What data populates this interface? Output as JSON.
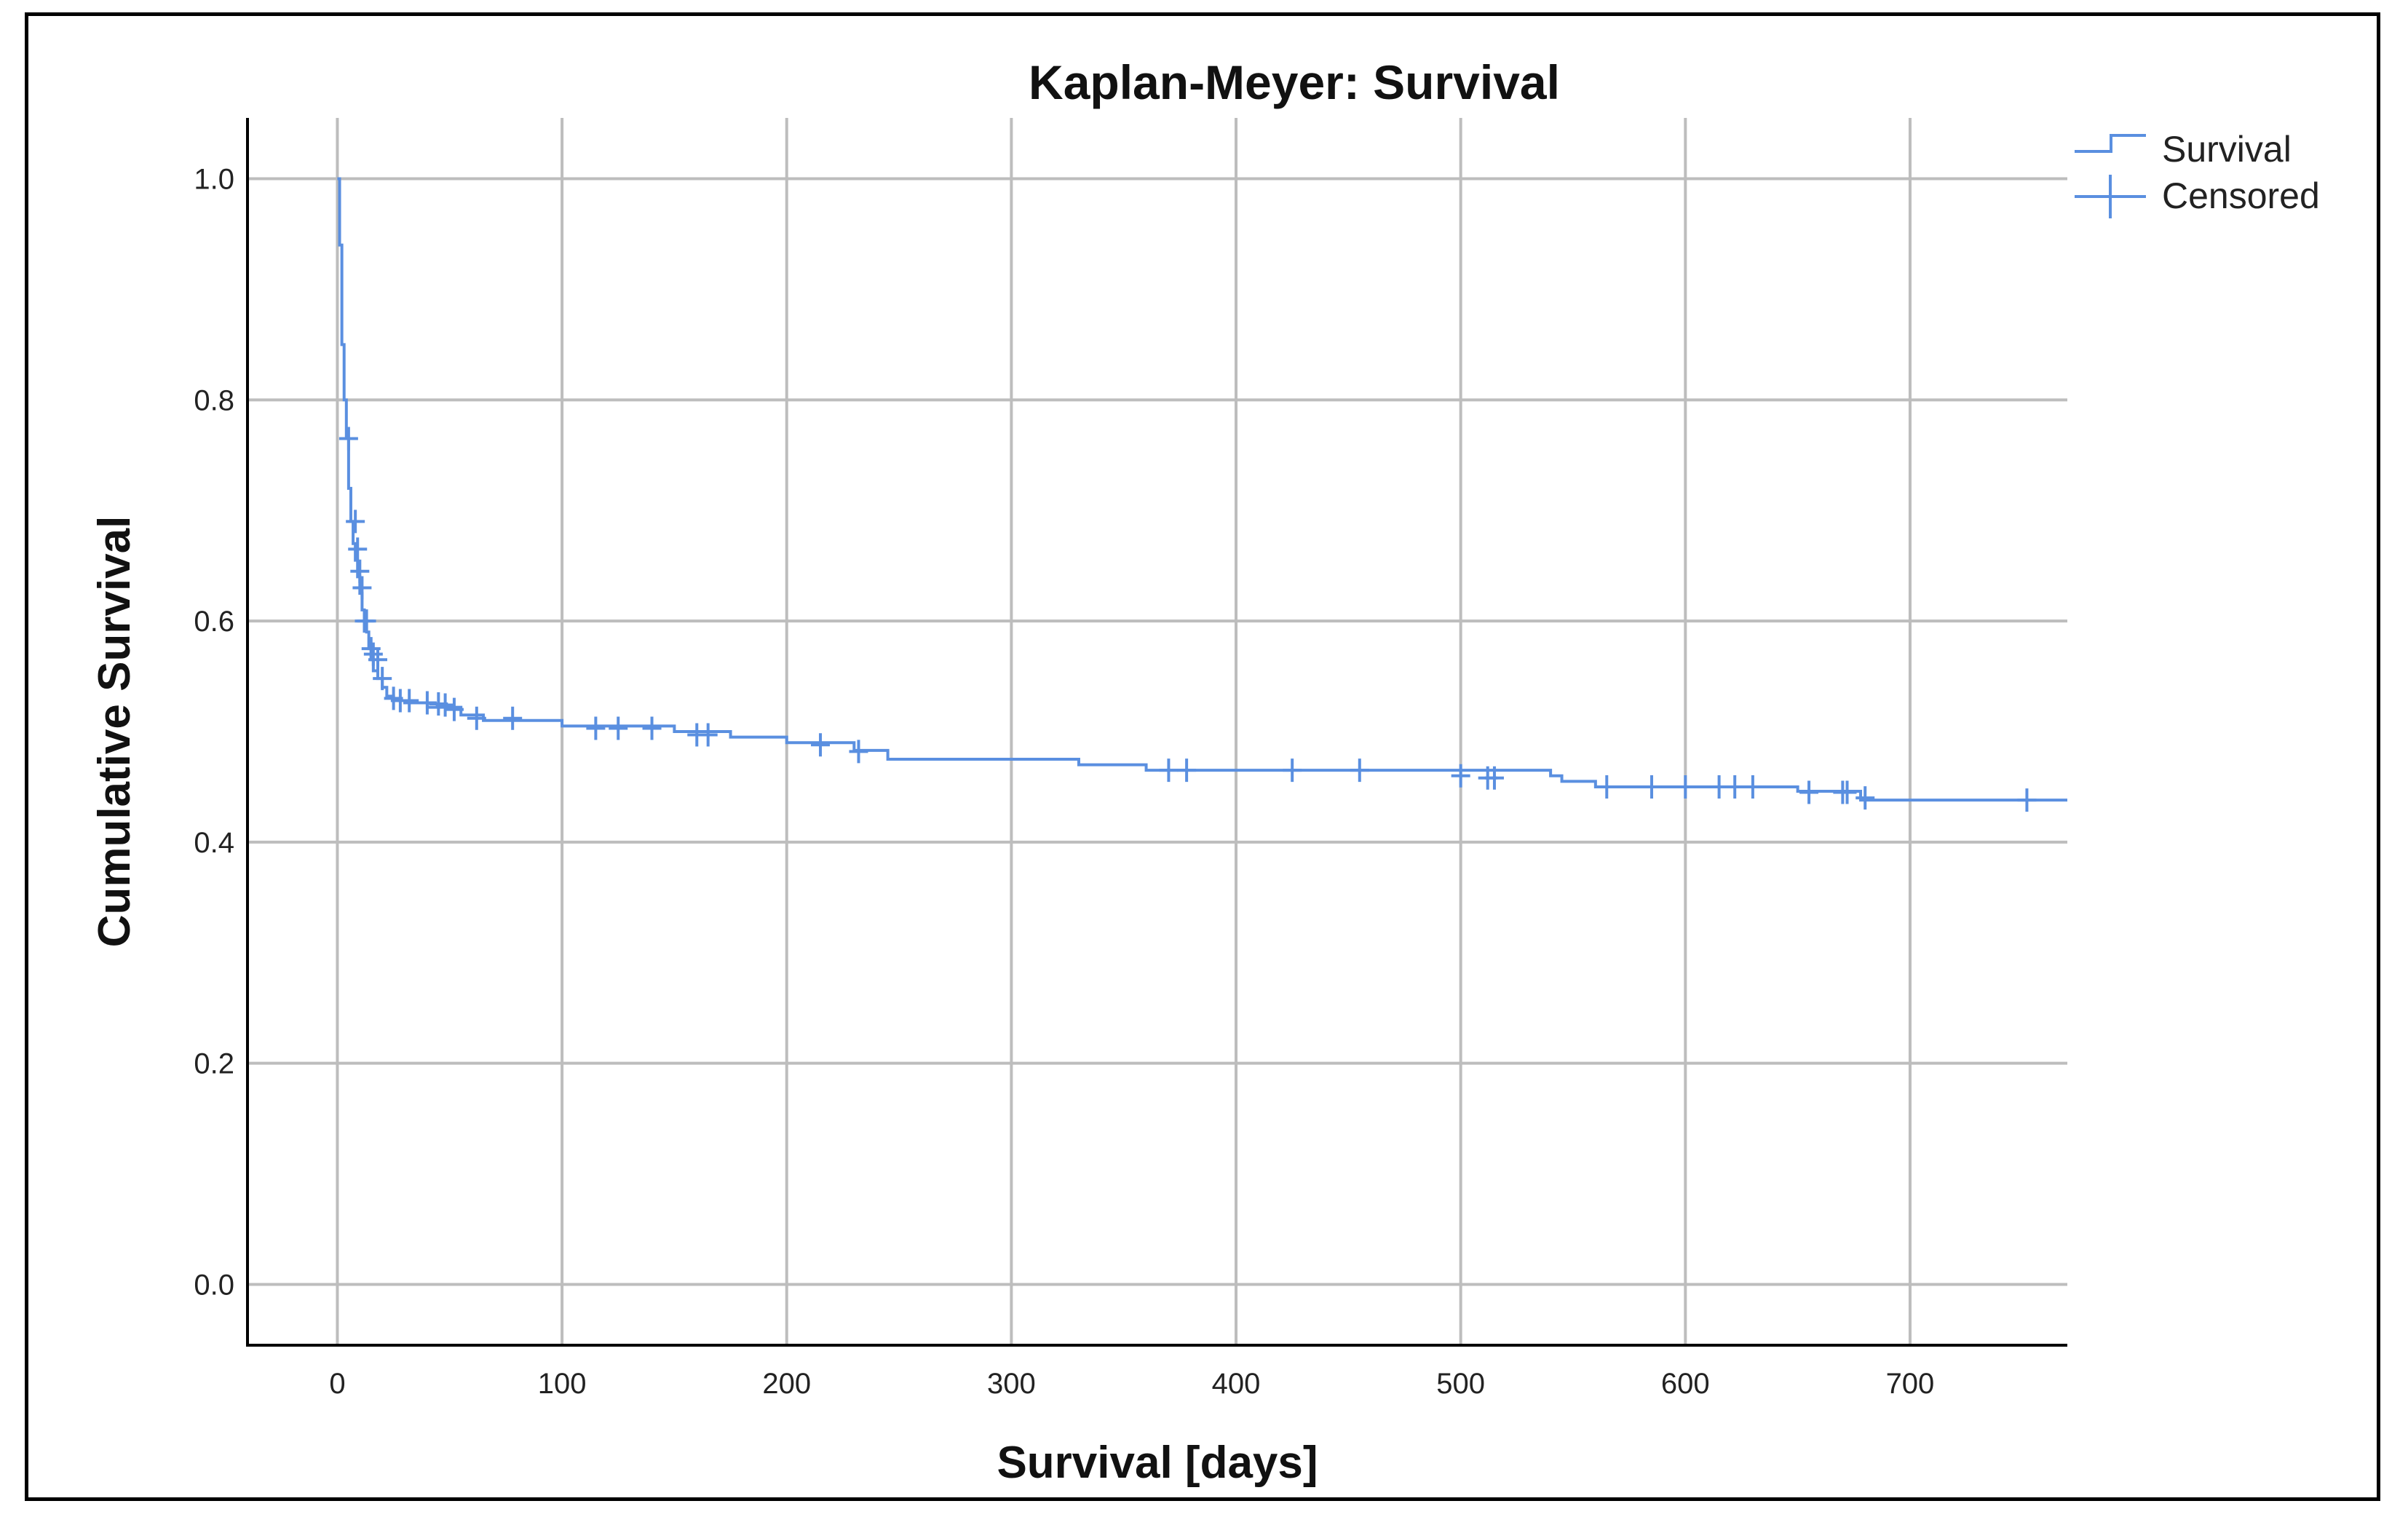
{
  "chart_data": {
    "type": "line",
    "title": "Kaplan-Meyer: Survival",
    "xlabel": "Survival [days]",
    "ylabel": "Cumulative Survival",
    "xlim": [
      -40,
      770
    ],
    "ylim": [
      -0.055,
      1.055
    ],
    "x_ticks": [
      "0",
      "100",
      "200",
      "300",
      "400",
      "500",
      "600",
      "700"
    ],
    "y_ticks": [
      "0.0",
      "0.2",
      "0.4",
      "0.6",
      "0.8",
      "1.0"
    ],
    "grid": true,
    "legend_position": "top-right",
    "legend": [
      "Survival",
      "Censored"
    ],
    "colors": {
      "series": "#5a8fe0",
      "grid": "#bdbdbd",
      "axis": "#000000"
    },
    "series": [
      {
        "name": "Survival",
        "step": true,
        "x": [
          0,
          1,
          2,
          3,
          4,
          5,
          6,
          7,
          8,
          9,
          10,
          11,
          12,
          13,
          14,
          15,
          16,
          18,
          20,
          22,
          25,
          30,
          40,
          55,
          65,
          100,
          150,
          175,
          200,
          230,
          245,
          330,
          360,
          540,
          545,
          560,
          650,
          678,
          770
        ],
        "y": [
          1.0,
          0.94,
          0.85,
          0.8,
          0.765,
          0.72,
          0.69,
          0.67,
          0.655,
          0.64,
          0.625,
          0.61,
          0.6,
          0.59,
          0.575,
          0.565,
          0.555,
          0.548,
          0.54,
          0.532,
          0.528,
          0.526,
          0.522,
          0.515,
          0.51,
          0.505,
          0.5,
          0.495,
          0.49,
          0.483,
          0.475,
          0.47,
          0.465,
          0.46,
          0.455,
          0.45,
          0.446,
          0.438,
          0.438
        ]
      },
      {
        "name": "Censored",
        "x": [
          5,
          8,
          9,
          10,
          11,
          12,
          13,
          15,
          16,
          18,
          20,
          25,
          28,
          32,
          40,
          45,
          48,
          52,
          62,
          78,
          115,
          125,
          140,
          160,
          165,
          215,
          232,
          370,
          378,
          425,
          455,
          500,
          512,
          515,
          565,
          585,
          600,
          615,
          622,
          630,
          655,
          670,
          672,
          680,
          752
        ],
        "y": [
          0.765,
          0.69,
          0.665,
          0.645,
          0.63,
          0.6,
          0.6,
          0.575,
          0.57,
          0.565,
          0.548,
          0.53,
          0.528,
          0.528,
          0.526,
          0.525,
          0.524,
          0.52,
          0.512,
          0.512,
          0.503,
          0.503,
          0.503,
          0.497,
          0.497,
          0.488,
          0.482,
          0.465,
          0.465,
          0.465,
          0.465,
          0.46,
          0.458,
          0.458,
          0.45,
          0.45,
          0.45,
          0.45,
          0.45,
          0.45,
          0.445,
          0.445,
          0.445,
          0.44,
          0.438
        ]
      }
    ]
  }
}
